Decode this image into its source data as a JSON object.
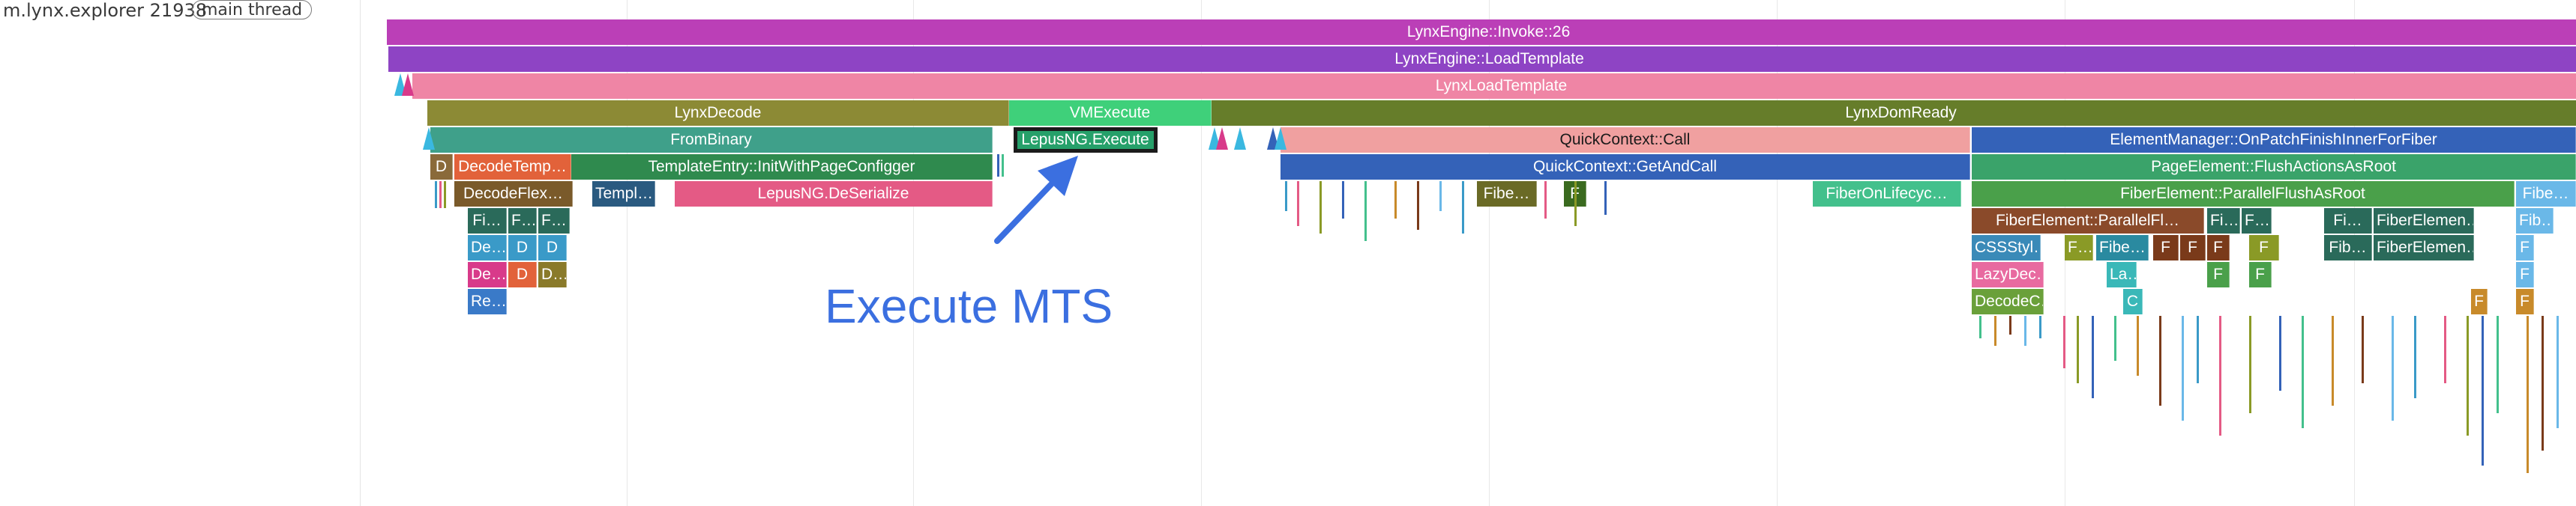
{
  "track": {
    "process_name": "m.lynx.explorer 21938",
    "thread_badge": "main thread"
  },
  "annotation": {
    "text": "Execute MTS",
    "color": "#3b6fe0"
  },
  "slices": [
    {
      "label": "LynxEngine::Invoke::26",
      "color": "#bb3fb7",
      "dark": false
    },
    {
      "label": "LynxEngine::LoadTemplate",
      "color": "#8e44c4",
      "dark": false
    },
    {
      "label": "LynxLoadTemplate",
      "color": "#ef85a5",
      "dark": false
    },
    {
      "label": "LynxDecode",
      "color": "#8c8a35",
      "dark": false
    },
    {
      "label": "VMExecute",
      "color": "#3fd07a",
      "dark": false
    },
    {
      "label": "LynxDomReady",
      "color": "#667d2a",
      "dark": false
    },
    {
      "label": "FromBinary",
      "color": "#3fa08a",
      "dark": false
    },
    {
      "label": "LepusNG.Execute",
      "color": "#26a06a",
      "dark": false
    },
    {
      "label": "QuickContext::Call",
      "color": "#f0a0a0",
      "dark": true
    },
    {
      "label": "ElementManager::OnPatchFinishInnerForFiber",
      "color": "#3462b8",
      "dark": false
    },
    {
      "label": "D",
      "color": "#8a6a3a",
      "dark": false
    },
    {
      "label": "DecodeTemp…",
      "color": "#e2623a",
      "dark": false
    },
    {
      "label": "TemplateEntry::InitWithPageConfigger",
      "color": "#2f8a4e",
      "dark": false
    },
    {
      "label": "QuickContext::GetAndCall",
      "color": "#3462b8",
      "dark": false
    },
    {
      "label": "PageElement::FlushActionsAsRoot",
      "color": "#3aa36a",
      "dark": false
    },
    {
      "label": "DecodeFlex…",
      "color": "#7a5a2a",
      "dark": false
    },
    {
      "label": "Templ…",
      "color": "#2a5a80",
      "dark": false
    },
    {
      "label": "LepusNG.DeSerialize",
      "color": "#e45a85",
      "dark": false
    },
    {
      "label": "Fibe…",
      "color": "#6a6a26",
      "dark": false
    },
    {
      "label": "F",
      "color": "#3a6a1f",
      "dark": false
    },
    {
      "label": "FiberOnLifecyc…",
      "color": "#43c08c",
      "dark": false
    },
    {
      "label": "FiberElement::ParallelFlushAsRoot",
      "color": "#4aa04a",
      "dark": false
    },
    {
      "label": "Fibe…",
      "color": "#6ab8e8",
      "dark": false
    },
    {
      "label": "Fi…",
      "color": "#2a6a5a",
      "dark": false
    },
    {
      "label": "F…",
      "color": "#2a6a5a",
      "dark": false
    },
    {
      "label": "F…",
      "color": "#2a6a5a",
      "dark": false
    },
    {
      "label": "FiberElement::ParallelFl…",
      "color": "#8a4a2a",
      "dark": false
    },
    {
      "label": "Fi…",
      "color": "#2a6a5a",
      "dark": false
    },
    {
      "label": "F…",
      "color": "#2a6a5a",
      "dark": false
    },
    {
      "label": "Fi…",
      "color": "#2a6a5a",
      "dark": false
    },
    {
      "label": "FiberElemen…",
      "color": "#2a6a5a",
      "dark": false
    },
    {
      "label": "Fib…",
      "color": "#6ab8e8",
      "dark": false
    },
    {
      "label": "De…",
      "color": "#3a9ac8",
      "dark": false
    },
    {
      "label": "D",
      "color": "#3a9ac8",
      "dark": false
    },
    {
      "label": "D",
      "color": "#3a9ac8",
      "dark": false
    },
    {
      "label": "CSSStyl…",
      "color": "#3a8ab8",
      "dark": false
    },
    {
      "label": "F…",
      "color": "#8a9a26",
      "dark": false
    },
    {
      "label": "Fibe…",
      "color": "#2a8aa0",
      "dark": false
    },
    {
      "label": "F",
      "color": "#7a3a1a",
      "dark": false
    },
    {
      "label": "F",
      "color": "#7a3a1a",
      "dark": false
    },
    {
      "label": "F",
      "color": "#7a3a1a",
      "dark": false
    },
    {
      "label": "F",
      "color": "#8a9a26",
      "dark": false
    },
    {
      "label": "Fib…",
      "color": "#2a6a5a",
      "dark": false
    },
    {
      "label": "FiberElemen…",
      "color": "#2a6a5a",
      "dark": false
    },
    {
      "label": "F",
      "color": "#6ab8e8",
      "dark": false
    },
    {
      "label": "De…",
      "color": "#d83a8a",
      "dark": false
    },
    {
      "label": "D",
      "color": "#e2623a",
      "dark": false
    },
    {
      "label": "D…",
      "color": "#8a7a2a",
      "dark": false
    },
    {
      "label": "LazyDec…",
      "color": "#e86aa0",
      "dark": false
    },
    {
      "label": "La…",
      "color": "#3ab8b8",
      "dark": false
    },
    {
      "label": "F",
      "color": "#4aa04a",
      "dark": false
    },
    {
      "label": "F",
      "color": "#4aa04a",
      "dark": false
    },
    {
      "label": "F",
      "color": "#6ab8e8",
      "dark": false
    },
    {
      "label": "Re…",
      "color": "#3a7ac8",
      "dark": false
    },
    {
      "label": "DecodeC…",
      "color": "#6aa03a",
      "dark": false
    },
    {
      "label": "C",
      "color": "#3ab8b8",
      "dark": false
    },
    {
      "label": "F",
      "color": "#c88a2a",
      "dark": false
    },
    {
      "label": "F",
      "color": "#c88a2a",
      "dark": false
    }
  ]
}
